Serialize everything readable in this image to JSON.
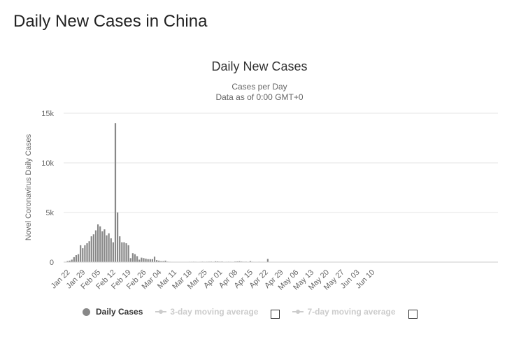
{
  "page": {
    "heading": "Daily New Cases in China"
  },
  "legend": {
    "items": [
      {
        "label": "Daily Cases",
        "active": true
      },
      {
        "label": "3-day moving average",
        "active": false
      },
      {
        "label": "7-day moving average",
        "active": false
      }
    ]
  },
  "chart_data": {
    "type": "bar",
    "title": "Daily New Cases",
    "subtitle_lines": [
      "Cases per Day",
      "Data as of 0:00 GMT+0"
    ],
    "ylabel": "Novel Coronavirus Daily Cases",
    "xlabel": "",
    "ylim": [
      0,
      15000
    ],
    "yticks": [
      0,
      5000,
      10000,
      15000
    ],
    "ytick_labels": [
      "0",
      "5k",
      "10k",
      "15k"
    ],
    "grid": true,
    "legend_position": "bottom",
    "bar_color": "#888888",
    "xtick_labels": [
      "Jan 22",
      "Jan 29",
      "Feb 05",
      "Feb 12",
      "Feb 19",
      "Feb 26",
      "Mar 04",
      "Mar 11",
      "Mar 18",
      "Mar 25",
      "Apr 01",
      "Apr 08",
      "Apr 15",
      "Apr 22",
      "Apr 29",
      "May 06",
      "May 13",
      "May 20",
      "May 27",
      "Jun 03",
      "Jun 10"
    ],
    "start_date": "Jan 22",
    "values": [
      100,
      150,
      250,
      500,
      700,
      800,
      1700,
      1400,
      1700,
      1900,
      2100,
      2600,
      2800,
      3200,
      3800,
      3600,
      3100,
      3300,
      2700,
      2900,
      2400,
      2000,
      14000,
      5000,
      2600,
      2000,
      2000,
      1900,
      1700,
      400,
      900,
      800,
      600,
      250,
      450,
      400,
      350,
      300,
      300,
      300,
      550,
      200,
      150,
      100,
      100,
      150,
      50,
      40,
      25,
      20,
      15,
      20,
      15,
      25,
      20,
      30,
      40,
      40,
      45,
      40,
      30,
      40,
      50,
      40,
      45,
      50,
      55,
      40,
      80,
      70,
      50,
      60,
      30,
      40,
      45,
      40,
      30,
      60,
      70,
      90,
      60,
      45,
      50,
      30,
      100,
      40,
      30,
      20,
      40,
      30,
      30,
      20,
      320,
      25,
      20,
      15,
      15,
      10,
      15,
      20,
      10,
      5,
      8,
      5,
      10,
      5,
      3,
      5,
      5,
      3,
      2,
      3,
      15,
      10,
      5,
      5,
      3,
      5,
      2,
      3,
      5,
      3,
      2,
      5,
      10,
      15,
      12,
      8,
      5,
      3,
      2,
      5,
      5,
      3,
      2,
      5,
      3,
      2,
      3,
      5,
      2
    ]
  }
}
